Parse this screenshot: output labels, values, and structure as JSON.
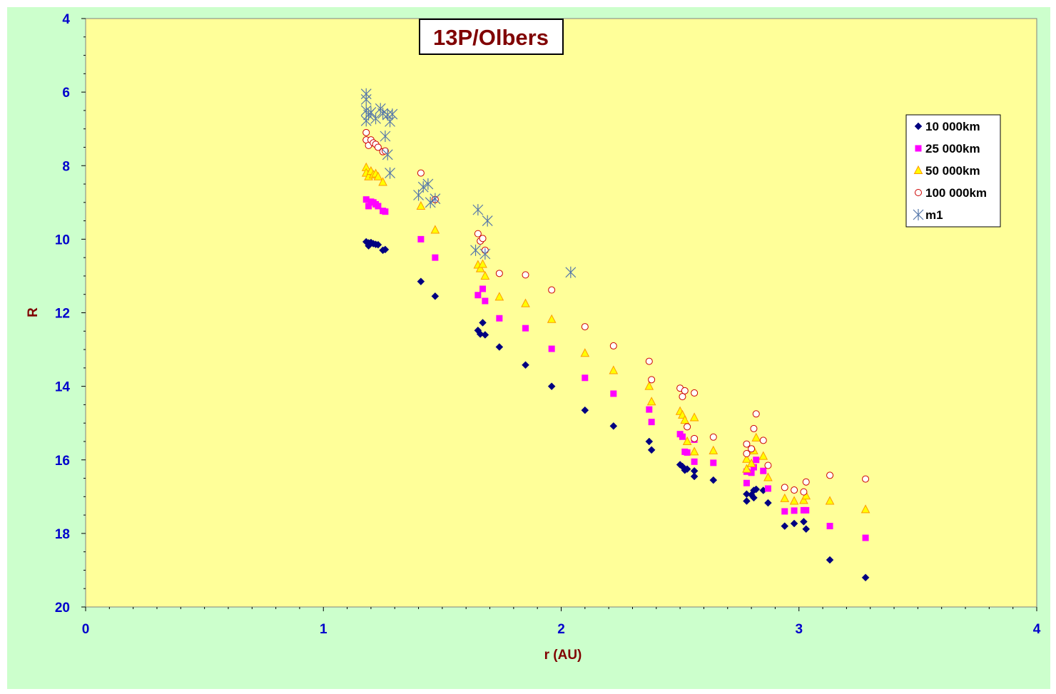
{
  "chart_data": {
    "type": "scatter",
    "title": "13P/Olbers",
    "xlabel": "r (AU)",
    "ylabel": "R",
    "xlim": [
      0,
      4
    ],
    "ylim": [
      4,
      20
    ],
    "y_inverted": true,
    "x_ticks": [
      "0",
      "1",
      "2",
      "3",
      "4"
    ],
    "y_ticks": [
      "4",
      "6",
      "8",
      "10",
      "12",
      "14",
      "16",
      "18",
      "20"
    ],
    "legend_position": "right",
    "plot_background": "#ffff99",
    "outer_background": "#ccffcc",
    "series": [
      {
        "name": "10 000km",
        "marker": "diamond",
        "color": "#000080",
        "points": [
          [
            1.18,
            10.07
          ],
          [
            1.19,
            10.1
          ],
          [
            1.19,
            10.18
          ],
          [
            1.2,
            10.09
          ],
          [
            1.21,
            10.12
          ],
          [
            1.22,
            10.14
          ],
          [
            1.23,
            10.15
          ],
          [
            1.25,
            10.3
          ],
          [
            1.26,
            10.28
          ],
          [
            1.41,
            11.15
          ],
          [
            1.47,
            11.55
          ],
          [
            1.65,
            12.48
          ],
          [
            1.66,
            12.58
          ],
          [
            1.67,
            12.27
          ],
          [
            1.68,
            12.6
          ],
          [
            1.74,
            12.93
          ],
          [
            1.85,
            13.42
          ],
          [
            1.96,
            14.0
          ],
          [
            2.1,
            14.65
          ],
          [
            2.22,
            15.08
          ],
          [
            2.37,
            15.5
          ],
          [
            2.38,
            15.73
          ],
          [
            2.5,
            16.13
          ],
          [
            2.51,
            16.18
          ],
          [
            2.52,
            16.28
          ],
          [
            2.53,
            16.25
          ],
          [
            2.56,
            16.3
          ],
          [
            2.56,
            16.45
          ],
          [
            2.64,
            16.55
          ],
          [
            2.78,
            16.93
          ],
          [
            2.78,
            17.12
          ],
          [
            2.8,
            16.95
          ],
          [
            2.81,
            16.83
          ],
          [
            2.81,
            17.03
          ],
          [
            2.82,
            16.8
          ],
          [
            2.85,
            16.83
          ],
          [
            2.87,
            17.17
          ],
          [
            2.94,
            17.8
          ],
          [
            2.98,
            17.73
          ],
          [
            3.02,
            17.68
          ],
          [
            3.03,
            17.88
          ],
          [
            3.13,
            18.72
          ],
          [
            3.28,
            19.2
          ]
        ]
      },
      {
        "name": "25 000km",
        "marker": "square",
        "color": "#ff00ff",
        "points": [
          [
            1.18,
            8.92
          ],
          [
            1.19,
            9.1
          ],
          [
            1.2,
            8.98
          ],
          [
            1.21,
            9.0
          ],
          [
            1.22,
            9.05
          ],
          [
            1.23,
            9.1
          ],
          [
            1.25,
            9.23
          ],
          [
            1.26,
            9.25
          ],
          [
            1.41,
            10.0
          ],
          [
            1.47,
            10.5
          ],
          [
            1.65,
            11.52
          ],
          [
            1.67,
            11.35
          ],
          [
            1.68,
            11.68
          ],
          [
            1.74,
            12.15
          ],
          [
            1.85,
            12.42
          ],
          [
            1.96,
            12.98
          ],
          [
            2.1,
            13.77
          ],
          [
            2.22,
            14.2
          ],
          [
            2.37,
            14.63
          ],
          [
            2.38,
            14.97
          ],
          [
            2.5,
            15.3
          ],
          [
            2.51,
            15.37
          ],
          [
            2.52,
            15.78
          ],
          [
            2.53,
            15.8
          ],
          [
            2.56,
            15.45
          ],
          [
            2.56,
            16.05
          ],
          [
            2.64,
            16.08
          ],
          [
            2.78,
            16.32
          ],
          [
            2.78,
            16.63
          ],
          [
            2.8,
            16.35
          ],
          [
            2.81,
            16.2
          ],
          [
            2.82,
            16.0
          ],
          [
            2.85,
            16.3
          ],
          [
            2.87,
            16.78
          ],
          [
            2.94,
            17.4
          ],
          [
            2.98,
            17.38
          ],
          [
            3.02,
            17.37
          ],
          [
            3.03,
            17.37
          ],
          [
            3.13,
            17.8
          ],
          [
            3.28,
            18.12
          ]
        ]
      },
      {
        "name": "50 000km",
        "marker": "triangle",
        "color": "#ff9900",
        "points": [
          [
            1.18,
            8.05
          ],
          [
            1.18,
            8.2
          ],
          [
            1.19,
            8.3
          ],
          [
            1.2,
            8.15
          ],
          [
            1.21,
            8.25
          ],
          [
            1.22,
            8.22
          ],
          [
            1.23,
            8.3
          ],
          [
            1.25,
            8.45
          ],
          [
            1.41,
            9.1
          ],
          [
            1.47,
            9.75
          ],
          [
            1.65,
            10.7
          ],
          [
            1.66,
            10.8
          ],
          [
            1.67,
            10.68
          ],
          [
            1.68,
            11.0
          ],
          [
            1.74,
            11.57
          ],
          [
            1.85,
            11.75
          ],
          [
            1.96,
            12.18
          ],
          [
            2.1,
            13.1
          ],
          [
            2.22,
            13.57
          ],
          [
            2.37,
            14.0
          ],
          [
            2.38,
            14.42
          ],
          [
            2.5,
            14.68
          ],
          [
            2.51,
            14.78
          ],
          [
            2.52,
            14.92
          ],
          [
            2.53,
            15.5
          ],
          [
            2.56,
            14.85
          ],
          [
            2.56,
            15.78
          ],
          [
            2.64,
            15.75
          ],
          [
            2.78,
            15.98
          ],
          [
            2.78,
            16.25
          ],
          [
            2.8,
            16.1
          ],
          [
            2.81,
            15.75
          ],
          [
            2.82,
            15.4
          ],
          [
            2.85,
            15.9
          ],
          [
            2.87,
            16.48
          ],
          [
            2.94,
            17.05
          ],
          [
            2.98,
            17.12
          ],
          [
            3.02,
            17.1
          ],
          [
            3.03,
            16.98
          ],
          [
            3.13,
            17.12
          ],
          [
            3.28,
            17.35
          ]
        ]
      },
      {
        "name": "100 000km",
        "marker": "circle",
        "color": "#cc0000",
        "points": [
          [
            1.18,
            7.1
          ],
          [
            1.18,
            7.3
          ],
          [
            1.19,
            7.45
          ],
          [
            1.2,
            7.3
          ],
          [
            1.21,
            7.38
          ],
          [
            1.22,
            7.42
          ],
          [
            1.23,
            7.5
          ],
          [
            1.25,
            7.62
          ],
          [
            1.26,
            7.6
          ],
          [
            1.41,
            8.2
          ],
          [
            1.47,
            8.92
          ],
          [
            1.65,
            9.85
          ],
          [
            1.66,
            10.05
          ],
          [
            1.67,
            9.98
          ],
          [
            1.68,
            10.3
          ],
          [
            1.74,
            10.93
          ],
          [
            1.85,
            10.97
          ],
          [
            1.96,
            11.38
          ],
          [
            2.1,
            12.38
          ],
          [
            2.22,
            12.9
          ],
          [
            2.37,
            13.32
          ],
          [
            2.38,
            13.82
          ],
          [
            2.5,
            14.05
          ],
          [
            2.51,
            14.28
          ],
          [
            2.52,
            14.12
          ],
          [
            2.53,
            15.1
          ],
          [
            2.56,
            14.18
          ],
          [
            2.56,
            15.42
          ],
          [
            2.64,
            15.38
          ],
          [
            2.78,
            15.57
          ],
          [
            2.78,
            15.83
          ],
          [
            2.8,
            15.7
          ],
          [
            2.81,
            15.15
          ],
          [
            2.82,
            14.75
          ],
          [
            2.85,
            15.47
          ],
          [
            2.87,
            16.15
          ],
          [
            2.94,
            16.75
          ],
          [
            2.98,
            16.82
          ],
          [
            3.02,
            16.87
          ],
          [
            3.03,
            16.6
          ],
          [
            3.13,
            16.42
          ],
          [
            3.28,
            16.52
          ]
        ]
      },
      {
        "name": "m1",
        "marker": "star",
        "color": "#5577aa",
        "points": [
          [
            1.18,
            6.05
          ],
          [
            1.18,
            6.2
          ],
          [
            1.18,
            6.5
          ],
          [
            1.18,
            6.78
          ],
          [
            1.19,
            6.62
          ],
          [
            1.2,
            6.55
          ],
          [
            1.22,
            6.72
          ],
          [
            1.24,
            6.45
          ],
          [
            1.25,
            6.58
          ],
          [
            1.27,
            6.62
          ],
          [
            1.28,
            6.8
          ],
          [
            1.29,
            6.6
          ],
          [
            1.26,
            7.2
          ],
          [
            1.27,
            7.7
          ],
          [
            1.28,
            8.2
          ],
          [
            1.4,
            8.8
          ],
          [
            1.42,
            8.58
          ],
          [
            1.44,
            8.5
          ],
          [
            1.45,
            9.0
          ],
          [
            1.47,
            8.9
          ],
          [
            1.64,
            10.3
          ],
          [
            1.65,
            9.2
          ],
          [
            1.68,
            10.4
          ],
          [
            1.69,
            9.5
          ],
          [
            2.04,
            10.9
          ]
        ]
      }
    ]
  }
}
